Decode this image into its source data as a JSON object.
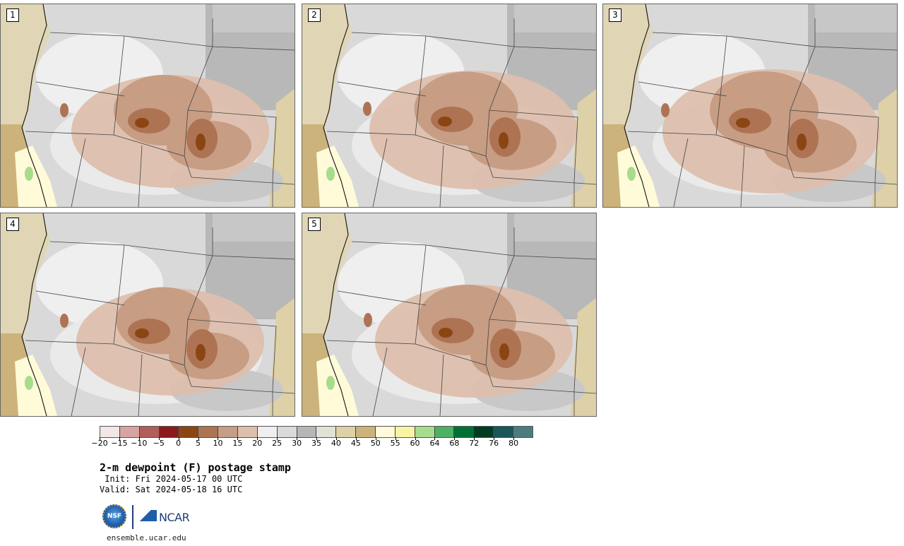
{
  "product": {
    "title": "2-m dewpoint (F) postage stamp",
    "init": " Init: Fri 2024-05-17 00 UTC",
    "valid": "Valid: Sat 2024-05-18 16 UTC"
  },
  "members": [
    {
      "label": "1"
    },
    {
      "label": "2"
    },
    {
      "label": "3"
    },
    {
      "label": "4"
    },
    {
      "label": "5"
    }
  ],
  "colorbar": {
    "unit": "F",
    "colors": [
      "#f3e6e6",
      "#d7a3a3",
      "#b45c5c",
      "#8b1a1a",
      "#8b4513",
      "#ad7353",
      "#c79d84",
      "#ddbfad",
      "#efefef",
      "#dadada",
      "#b6b6b6",
      "#e1e1d6",
      "#ded0a7",
      "#cbb37b",
      "#fffbd9",
      "#f8f5a2",
      "#a6dc8c",
      "#4db163",
      "#007136",
      "#003c22",
      "#1a5557",
      "#4d7c7e"
    ],
    "ticks": [
      "-20",
      "-15",
      "-10",
      "-5",
      "0",
      "5",
      "10",
      "15",
      "20",
      "25",
      "30",
      "35",
      "40",
      "45",
      "50",
      "55",
      "60",
      "64",
      "68",
      "72",
      "76",
      "80"
    ]
  },
  "footer": {
    "logo_nsf": "NSF",
    "logo_ncar": "NCAR",
    "site": "ensemble.ucar.edu"
  }
}
